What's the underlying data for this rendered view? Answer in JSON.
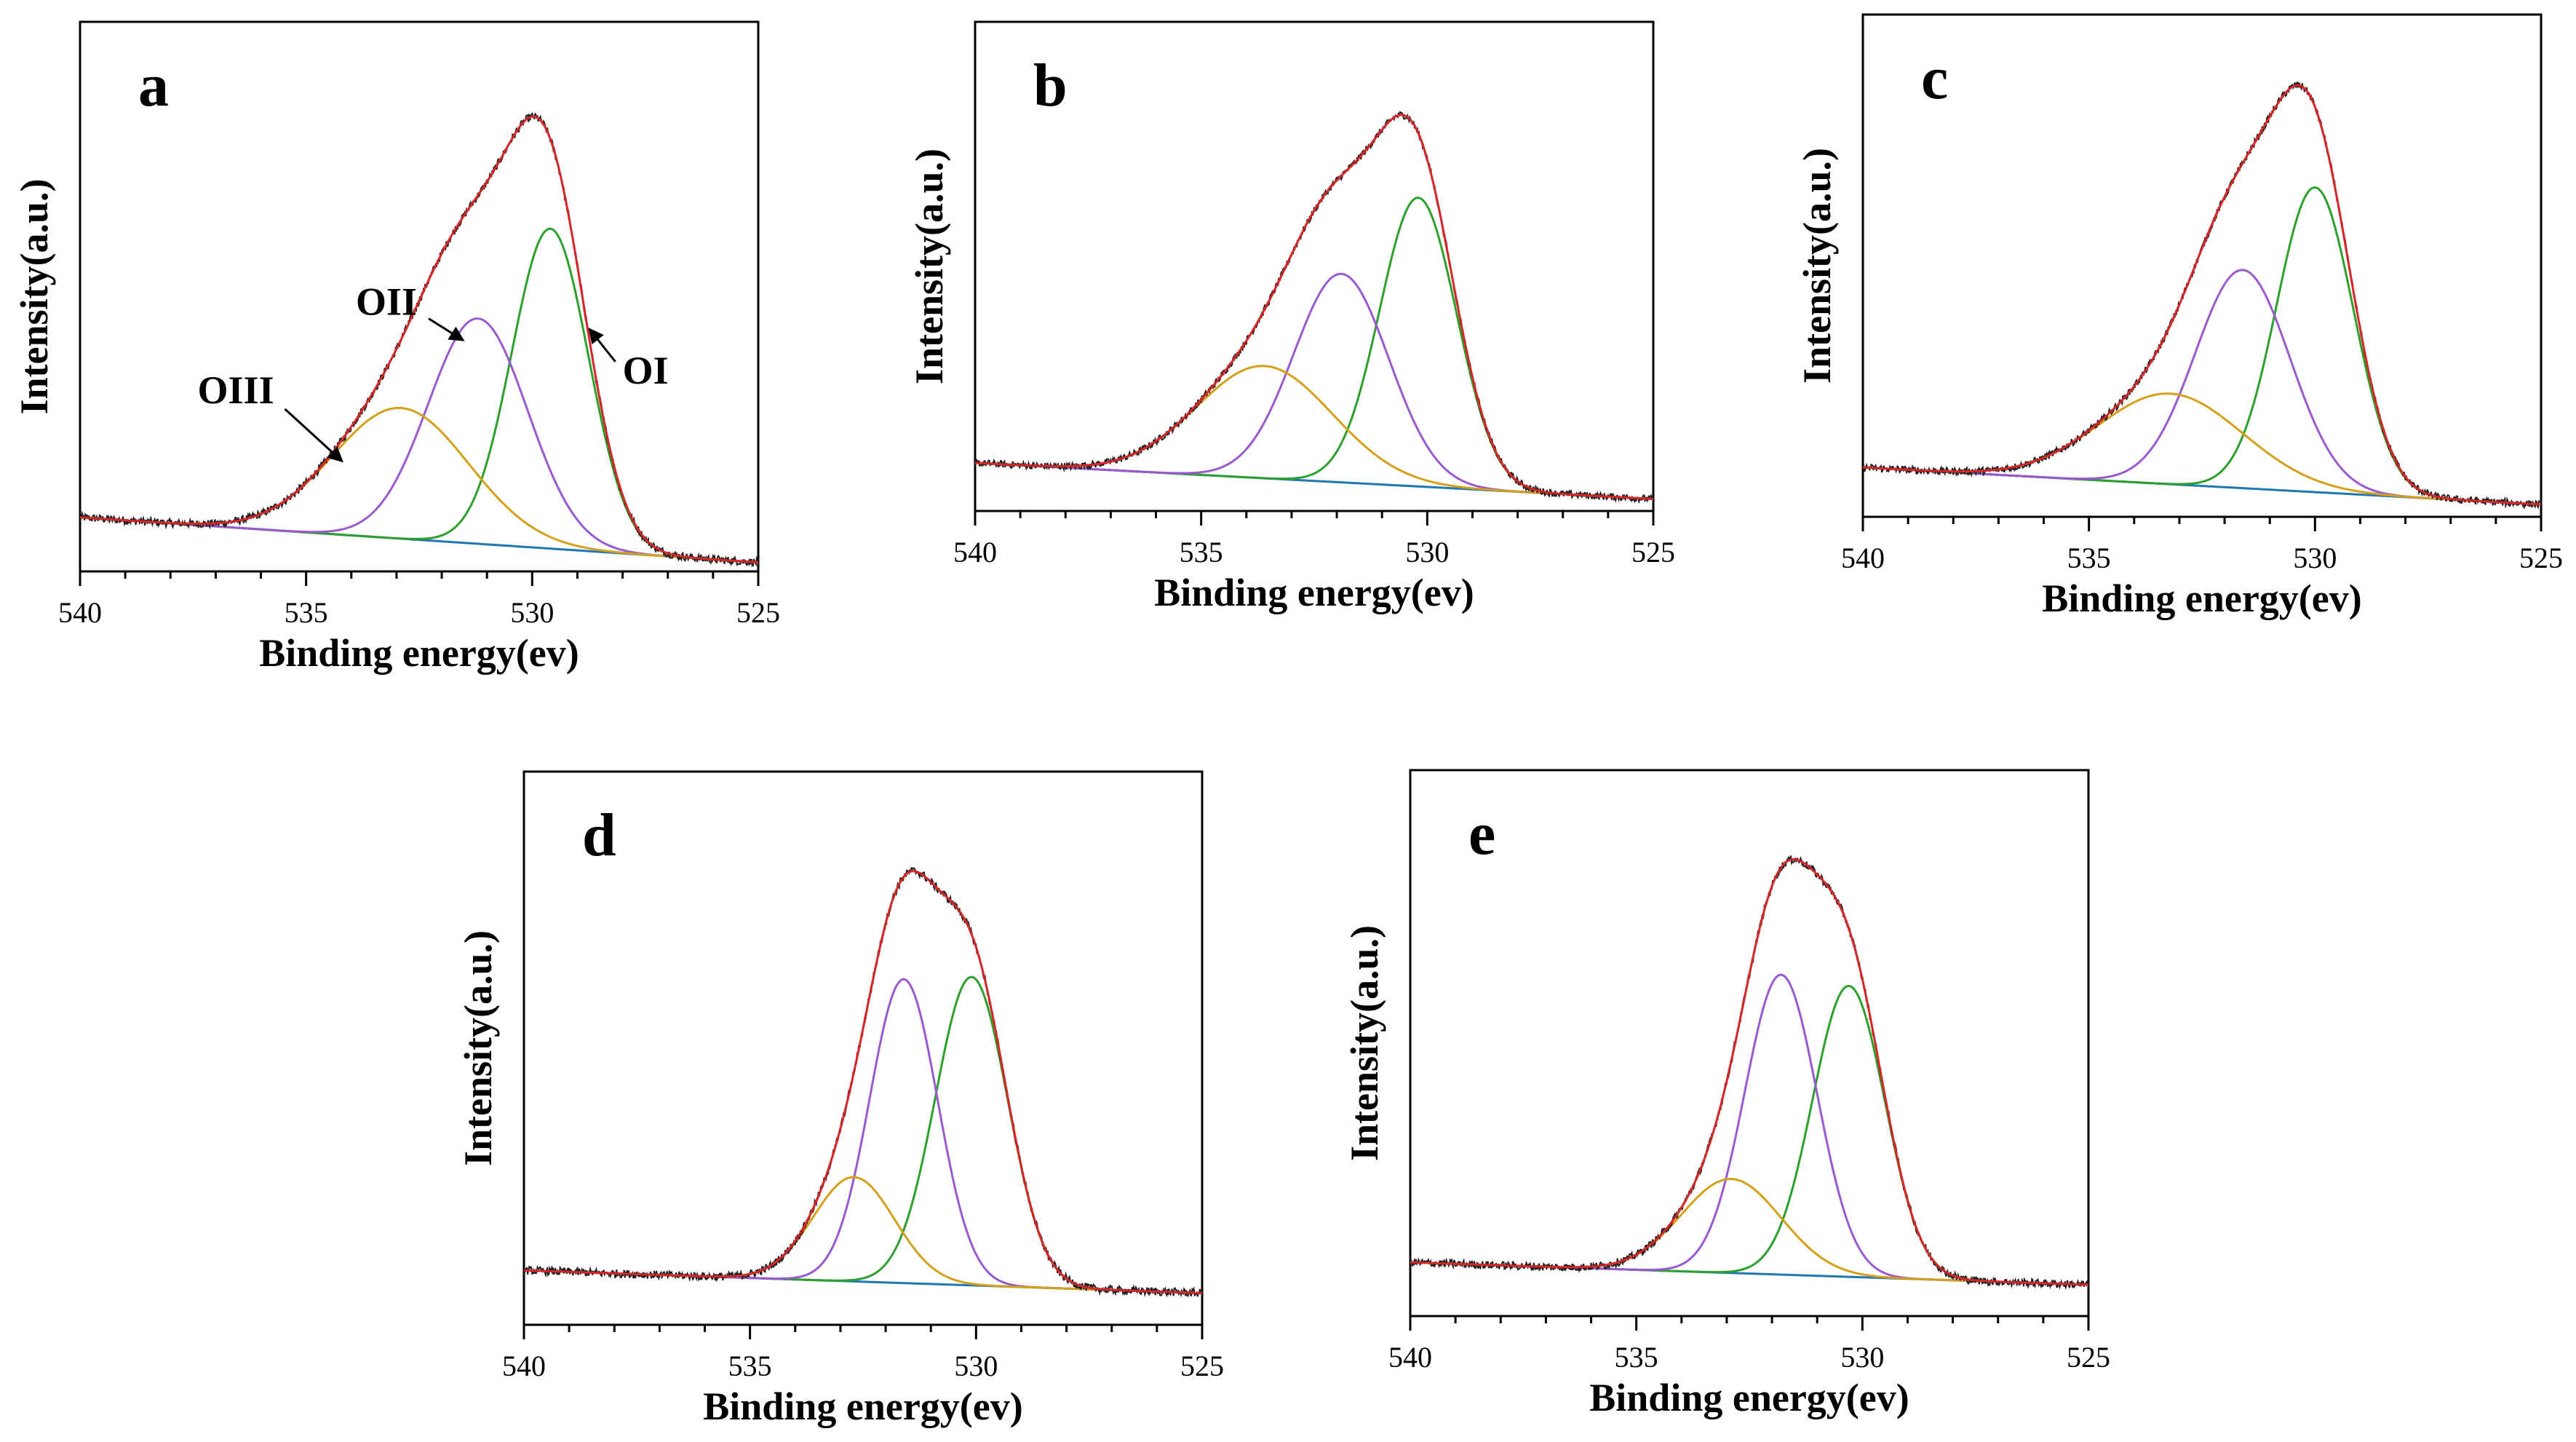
{
  "chart_data": [
    {
      "panel": "a",
      "type": "line",
      "xlabel": "Binding energy(ev)",
      "ylabel": "Intensity(a.u.)",
      "xlim": [
        540,
        525
      ],
      "xticks": [
        540,
        535,
        530,
        525
      ],
      "ylim": [
        -0.12,
        1.1
      ],
      "series": [
        {
          "name": "OI",
          "component": "gauss",
          "center": 529.6,
          "width": 0.85,
          "height": 0.71
        },
        {
          "name": "OII",
          "component": "gauss",
          "center": 531.2,
          "width": 1.1,
          "height": 0.5
        },
        {
          "name": "OIII",
          "component": "gauss",
          "center": 532.9,
          "width": 1.5,
          "height": 0.29
        },
        {
          "name": "Background",
          "component": "baseline",
          "start": 0.0,
          "end": -0.1
        },
        {
          "name": "Envelope",
          "component": "sum"
        },
        {
          "name": "Experimental",
          "component": "noisy-sum"
        }
      ],
      "annotations": [
        {
          "text": "OI",
          "target": "OI"
        },
        {
          "text": "OII",
          "target": "OII"
        },
        {
          "text": "OIII",
          "target": "OIII"
        }
      ]
    },
    {
      "panel": "b",
      "type": "line",
      "xlabel": "Binding energy(ev)",
      "ylabel": "Intensity(a.u.)",
      "xlim": [
        540,
        525
      ],
      "xticks": [
        540,
        535,
        530,
        525
      ],
      "ylim": [
        -0.12,
        1.1
      ],
      "series": [
        {
          "name": "OI",
          "component": "gauss",
          "center": 530.2,
          "width": 0.85,
          "height": 0.72
        },
        {
          "name": "OII",
          "component": "gauss",
          "center": 531.9,
          "width": 1.05,
          "height": 0.52
        },
        {
          "name": "OIII",
          "component": "gauss",
          "center": 533.6,
          "width": 1.5,
          "height": 0.28
        },
        {
          "name": "Background",
          "component": "baseline",
          "start": 0.0,
          "end": -0.09
        },
        {
          "name": "Envelope",
          "component": "sum"
        },
        {
          "name": "Experimental",
          "component": "noisy-sum"
        }
      ],
      "annotations": []
    },
    {
      "panel": "c",
      "type": "line",
      "xlabel": "Binding energy(ev)",
      "ylabel": "Intensity(a.u.)",
      "xlim": [
        540,
        525
      ],
      "xticks": [
        540,
        535,
        530,
        525
      ],
      "ylim": [
        -0.12,
        1.1
      ],
      "series": [
        {
          "name": "OI",
          "component": "gauss",
          "center": 530.0,
          "width": 0.85,
          "height": 0.74
        },
        {
          "name": "OII",
          "component": "gauss",
          "center": 531.6,
          "width": 1.05,
          "height": 0.53
        },
        {
          "name": "OIII",
          "component": "gauss",
          "center": 533.2,
          "width": 1.6,
          "height": 0.22
        },
        {
          "name": "Background",
          "component": "baseline",
          "start": 0.0,
          "end": -0.09
        },
        {
          "name": "Envelope",
          "component": "sum"
        },
        {
          "name": "Experimental",
          "component": "noisy-sum"
        }
      ],
      "annotations": []
    },
    {
      "panel": "d",
      "type": "line",
      "xlabel": "Binding energy(ev)",
      "ylabel": "Intensity(a.u.)",
      "xlim": [
        540,
        525
      ],
      "xticks": [
        540,
        535,
        530,
        525
      ],
      "ylim": [
        -0.12,
        1.1
      ],
      "series": [
        {
          "name": "OI",
          "component": "gauss",
          "center": 530.1,
          "width": 0.8,
          "height": 0.68
        },
        {
          "name": "OII",
          "component": "gauss",
          "center": 531.6,
          "width": 0.75,
          "height": 0.67
        },
        {
          "name": "OIII",
          "component": "gauss",
          "center": 532.7,
          "width": 0.9,
          "height": 0.23
        },
        {
          "name": "Background",
          "component": "baseline",
          "start": 0.0,
          "end": -0.05
        },
        {
          "name": "Envelope",
          "component": "sum"
        },
        {
          "name": "Experimental",
          "component": "noisy-sum"
        }
      ],
      "annotations": []
    },
    {
      "panel": "e",
      "type": "line",
      "xlabel": "Binding energy(ev)",
      "ylabel": "Intensity(a.u.)",
      "xlim": [
        540,
        525
      ],
      "xticks": [
        540,
        535,
        530,
        525
      ],
      "ylim": [
        -0.12,
        1.1
      ],
      "series": [
        {
          "name": "OI",
          "component": "gauss",
          "center": 530.3,
          "width": 0.8,
          "height": 0.65
        },
        {
          "name": "OII",
          "component": "gauss",
          "center": 531.8,
          "width": 0.8,
          "height": 0.67
        },
        {
          "name": "OIII",
          "component": "gauss",
          "center": 532.9,
          "width": 1.1,
          "height": 0.21
        },
        {
          "name": "Background",
          "component": "baseline",
          "start": 0.0,
          "end": -0.05
        },
        {
          "name": "Envelope",
          "component": "sum"
        },
        {
          "name": "Experimental",
          "component": "noisy-sum"
        }
      ],
      "annotations": []
    }
  ],
  "colors": {
    "OI": "#2ca02c",
    "OII": "#9b59d0",
    "OIII": "#d4a017",
    "Background": "#1f77b4",
    "Envelope": "#d62728",
    "Experimental": "#222222",
    "axis": "#000000"
  }
}
